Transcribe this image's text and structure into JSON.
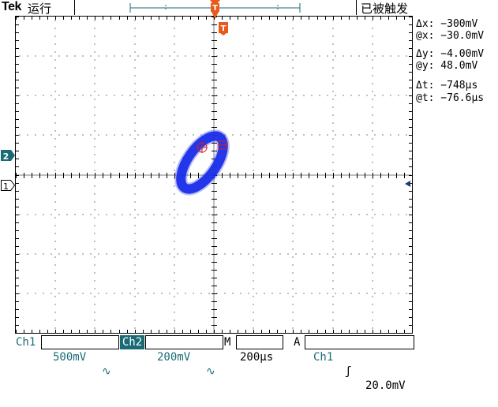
{
  "top_bar": {
    "brand": "Tek",
    "run_status": "运行",
    "trigger_status": "已被触发"
  },
  "markers": {
    "trigger_top": "T",
    "trigger_position": "T",
    "channel_2": "2",
    "channel_1": "1"
  },
  "readouts": {
    "delta_x": "Δx: −300mV",
    "at_x": "@x: −30.0mV",
    "delta_y": "Δy: −4.00mV",
    "at_y": "@y: 48.0mV",
    "delta_t": "Δt: −748µs",
    "at_t": "@t: −76.6µs"
  },
  "status_bar": {
    "ch1_label": "Ch1",
    "ch1_scale": "500mV",
    "ch1_coupling": "∿",
    "ch2_label": "Ch2",
    "ch2_scale": "200mV",
    "ch2_coupling": "∿",
    "timebase_label": "M",
    "timebase_value": "200µs",
    "trigger_mode": "A",
    "trigger_source": "Ch1",
    "trigger_slope": "ʃ",
    "trigger_level": "20.0mV"
  },
  "colors": {
    "trace": "#1428e6",
    "marker_orange": "#e85a1a",
    "channel_teal": "#1a6b75",
    "grid": "#000000",
    "cursor_red": "#d42020"
  },
  "icons": {
    "trigger_marker": "trigger-t-icon",
    "channel_marker": "channel-flag-icon",
    "cursor": "crosshair-circle-icon",
    "level_arrow": "arrow-left-icon"
  }
}
